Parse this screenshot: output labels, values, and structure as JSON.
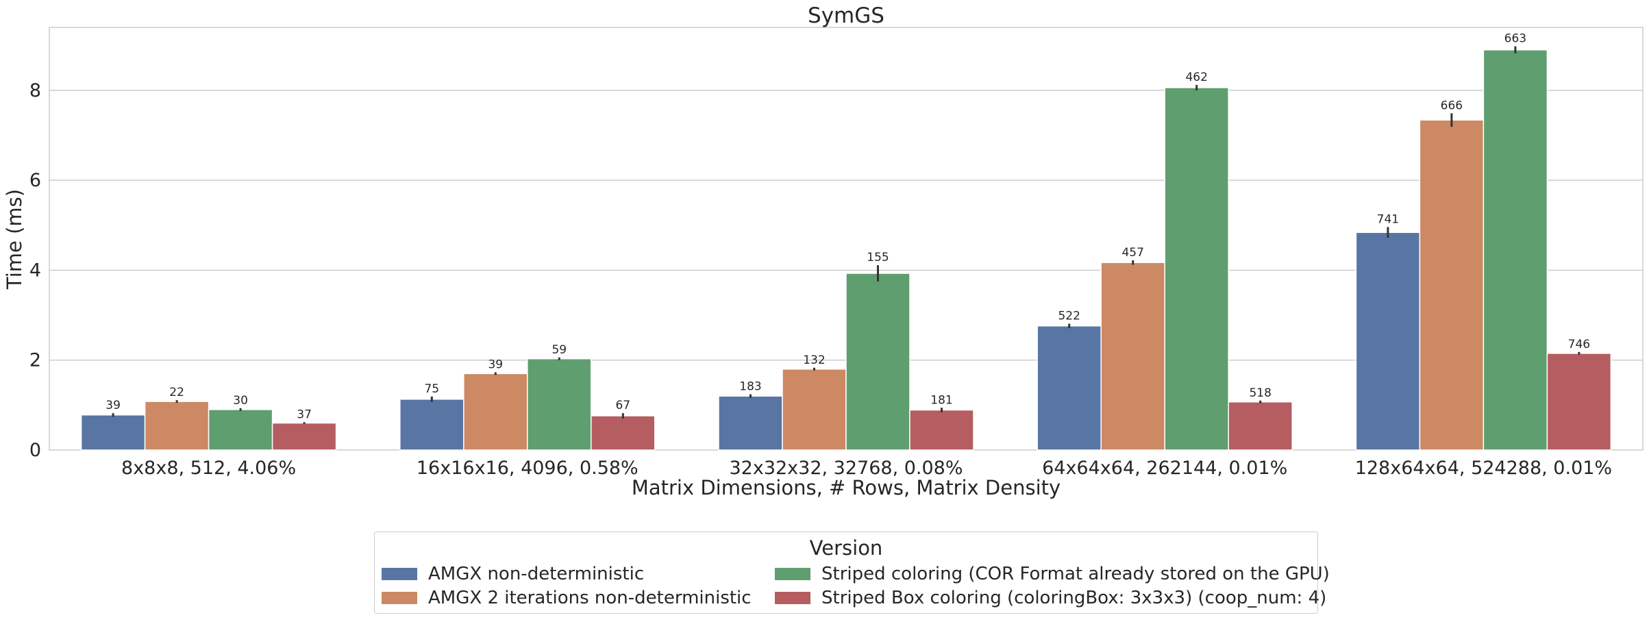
{
  "chart_data": {
    "type": "bar",
    "title": "SymGS",
    "xlabel": "Matrix Dimensions, # Rows, Matrix Density",
    "ylabel": "Time (ms)",
    "ylim": [
      0,
      9.4
    ],
    "yticks": [
      "0",
      "2",
      "4",
      "6",
      "8"
    ],
    "grid": "horizontal",
    "categories": [
      "8x8x8, 512, 4.06%",
      "16x16x16, 4096, 0.58%",
      "32x32x32, 32768, 0.08%",
      "64x64x64, 262144, 0.01%",
      "128x64x64, 524288, 0.01%"
    ],
    "series": [
      {
        "name": "AMGX non-deterministic",
        "color": "#5875a4",
        "values": [
          0.78,
          1.13,
          1.2,
          2.76,
          4.84
        ],
        "errors": [
          0.04,
          0.06,
          0.04,
          0.05,
          0.12
        ],
        "labels": [
          "39",
          "75",
          "183",
          "522",
          "741"
        ]
      },
      {
        "name": "AMGX 2 iterations non-deterministic",
        "color": "#cc8963",
        "values": [
          1.08,
          1.7,
          1.8,
          4.17,
          7.34
        ],
        "errors": [
          0.03,
          0.03,
          0.03,
          0.05,
          0.15
        ],
        "labels": [
          "22",
          "39",
          "132",
          "457",
          "666"
        ]
      },
      {
        "name": "Striped coloring (COR Format already stored on the GPU)",
        "color": "#5f9e6e",
        "values": [
          0.9,
          2.03,
          3.93,
          8.06,
          8.9
        ],
        "errors": [
          0.03,
          0.03,
          0.18,
          0.06,
          0.08
        ],
        "labels": [
          "30",
          "59",
          "155",
          "462",
          "663"
        ]
      },
      {
        "name": "Striped Box coloring (coloringBox: 3x3x3) (coop_num: 4)",
        "color": "#b55d60",
        "values": [
          0.6,
          0.76,
          0.89,
          1.07,
          2.15
        ],
        "errors": [
          0.02,
          0.06,
          0.05,
          0.03,
          0.03
        ],
        "labels": [
          "37",
          "67",
          "181",
          "518",
          "746"
        ]
      }
    ],
    "legend": {
      "title": "Version",
      "placement": "bottom-center",
      "columns": 2
    }
  }
}
